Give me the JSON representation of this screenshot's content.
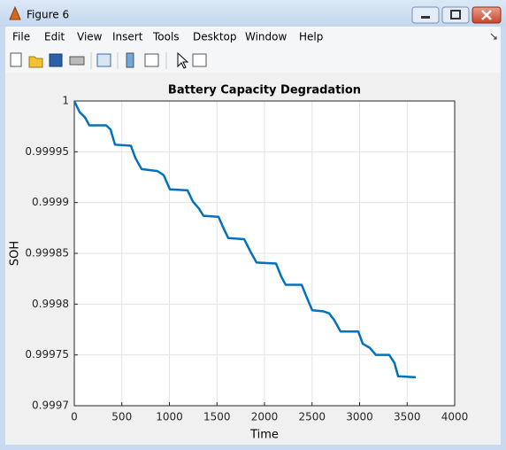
{
  "window": {
    "title": "Figure 6",
    "menu": [
      "File",
      "Edit",
      "View",
      "Insert",
      "Tools",
      "Desktop",
      "Window",
      "Help"
    ]
  },
  "chart_data": {
    "type": "line",
    "title": "Battery Capacity Degradation",
    "x_label": "Time",
    "y_label": "SOH",
    "x": [
      0,
      56,
      112,
      158,
      335,
      381,
      428,
      595,
      642,
      707,
      874,
      940,
      1005,
      1191,
      1247,
      1312,
      1358,
      1516,
      1563,
      1619,
      1786,
      1851,
      1916,
      2121,
      2177,
      2223,
      2391,
      2447,
      2502,
      2614,
      2679,
      2735,
      2800,
      2986,
      3033,
      3107,
      3172,
      3312,
      3367,
      3405,
      3591
    ],
    "values": [
      1.0,
      0.999989,
      0.999984,
      0.999976,
      0.999976,
      0.999972,
      0.999957,
      0.999956,
      0.999944,
      0.999933,
      0.999931,
      0.999927,
      0.999913,
      0.999912,
      0.999901,
      0.999894,
      0.999887,
      0.999886,
      0.999876,
      0.999865,
      0.999864,
      0.999852,
      0.999841,
      0.99984,
      0.999827,
      0.999819,
      0.999819,
      0.999806,
      0.999794,
      0.999793,
      0.999791,
      0.999784,
      0.999773,
      0.999773,
      0.999761,
      0.999757,
      0.99975,
      0.99975,
      0.999742,
      0.999729,
      0.999728
    ],
    "color": "#0072bd",
    "xlim": [
      0,
      4000
    ],
    "xticks": [
      0,
      500,
      1000,
      1500,
      2000,
      2500,
      3000,
      3500,
      4000
    ],
    "ylim": [
      0.9997,
      1
    ],
    "yticks": [
      0.9997,
      0.99975,
      0.9998,
      0.99985,
      0.9999,
      0.99995,
      1
    ],
    "grid": true
  }
}
